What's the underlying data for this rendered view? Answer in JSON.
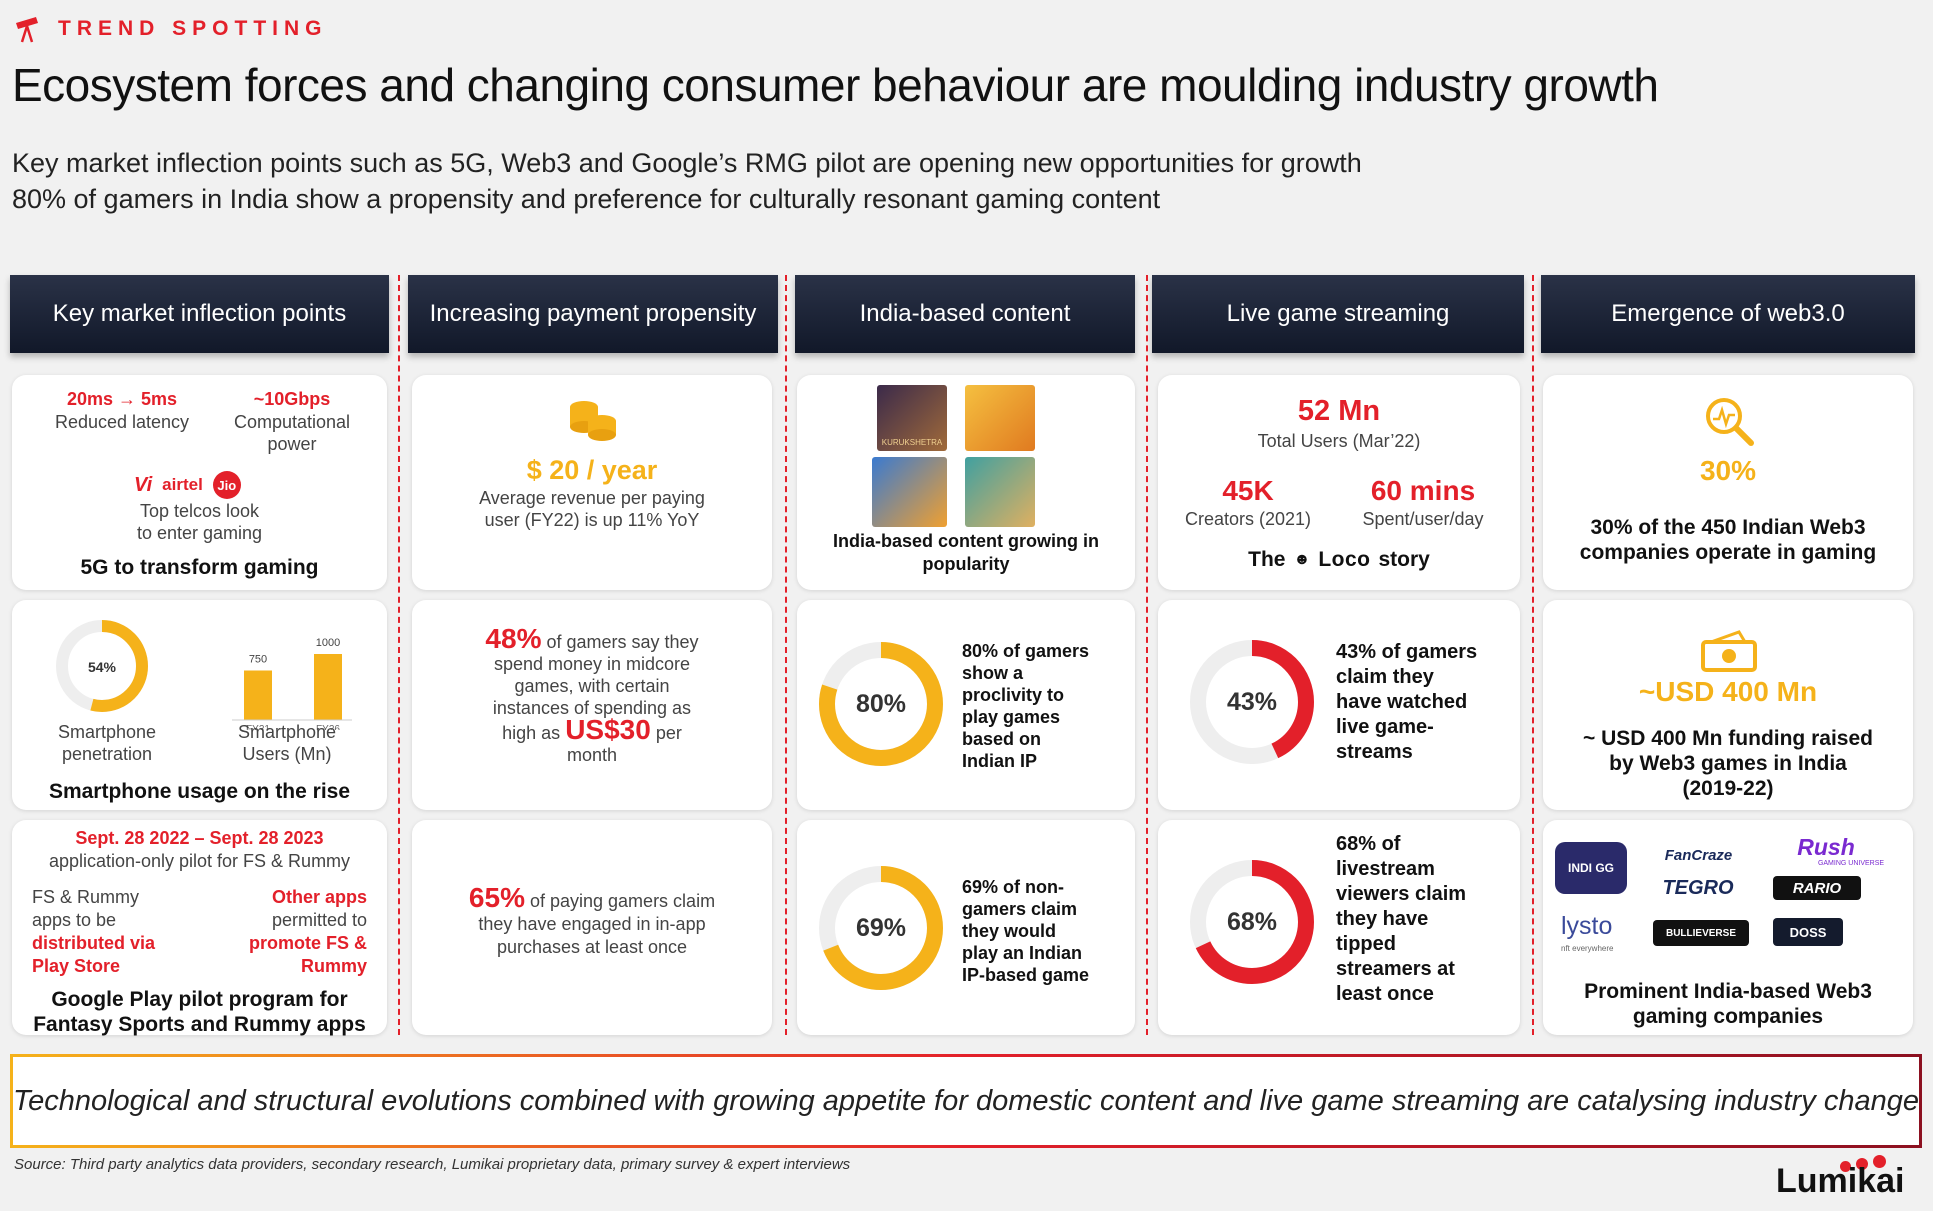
{
  "header": {
    "tag": "TREND SPOTTING",
    "title": "Ecosystem forces and changing consumer behaviour are moulding industry growth",
    "subtitle1": "Key market inflection points such as 5G, Web3 and Google’s RMG pilot are opening new opportunities for growth",
    "subtitle2": "80% of gamers in India show a propensity and preference for culturally resonant gaming content"
  },
  "columns": [
    "Key market inflection points",
    "Increasing payment propensity",
    "India-based content",
    "Live game streaming",
    "Emergence of web3.0"
  ],
  "col1": {
    "latency_value": "20ms → 5ms",
    "latency_label": "Reduced latency",
    "gbps_value": "~10Gbps",
    "gbps_label1": "Computational",
    "gbps_label2": "power",
    "telco_vi": "Vi",
    "telco_airtel": "airtel",
    "telco_jio": "Jio",
    "telcos_text1": "Top telcos look",
    "telcos_text2": "to enter gaming",
    "card1_title": "5G to transform gaming",
    "smartphone_pct_label": "54%",
    "smartphone_pen_label1": "Smartphone",
    "smartphone_pen_label2": "penetration",
    "users_label1": "Smartphone",
    "users_label2": "Users (Mn)",
    "card2_title": "Smartphone usage on the rise",
    "pilot_dates": "Sept. 28 2022 – Sept. 28 2023",
    "pilot_sub": "application-only pilot for FS & Rummy",
    "left_t1": "FS & Rummy",
    "left_t2": "apps to be",
    "left_t3": "distributed via",
    "left_t4": "Play Store",
    "right_t1": "Other apps",
    "right_t2": "permitted to",
    "right_t3": "promote FS &",
    "right_t4": "Rummy",
    "card3_title1": "Google Play pilot program for",
    "card3_title2": "Fantasy Sports and Rummy apps"
  },
  "col2": {
    "arpu": "$ 20 / year",
    "arpu_t1": "Average revenue per paying",
    "arpu_t2": "user (FY22) is up 11% YoY",
    "pct48": "48%",
    "t48_a": "of gamers say they",
    "t48_b": "spend money in midcore",
    "t48_c": "games, with certain",
    "t48_d": "instances of spending as",
    "t48_e": "high as",
    "t48_amt": "US$30",
    "t48_f": "per",
    "t48_g": "month",
    "pct65": "65%",
    "t65_a": "of paying gamers claim",
    "t65_b": "they have engaged in in-app",
    "t65_c": "purchases at least once"
  },
  "col3": {
    "game1_caption": "KURUKSHETRA",
    "popularity1": "India-based content growing in",
    "popularity2": "popularity",
    "donut80_label": "80%",
    "t80_1": "80% of gamers",
    "t80_2": "show a",
    "t80_3": "proclivity to",
    "t80_4": "play games",
    "t80_5": "based on",
    "t80_6": "Indian IP",
    "donut69_label": "69%",
    "t69_1": "69% of non-",
    "t69_2": "gamers claim",
    "t69_3": "they would",
    "t69_4": "play an Indian",
    "t69_5": "IP-based game"
  },
  "col4": {
    "users": "52 Mn",
    "users_label": "Total Users (Mar’22)",
    "creators": "45K",
    "creators_label": "Creators (2021)",
    "mins": "60 mins",
    "mins_label": "Spent/user/day",
    "story_the": "The",
    "story_brand": "Loco",
    "story_end": "story",
    "donut43_label": "43%",
    "t43_1": "43% of gamers",
    "t43_2": "claim they",
    "t43_3": "have watched",
    "t43_4": "live game-",
    "t43_5": "streams",
    "donut68_label": "68%",
    "t68_1": "68% of",
    "t68_2": "livestream",
    "t68_3": "viewers claim",
    "t68_4": "they have",
    "t68_5": "tipped",
    "t68_6": "streamers at",
    "t68_7": "least once"
  },
  "col5": {
    "pct30": "30%",
    "t30_1": "30% of the 450 Indian Web3",
    "t30_2": "companies operate in gaming",
    "usd": "~USD 400 Mn",
    "tusd_1": "~ USD 400 Mn funding raised",
    "tusd_2": "by Web3 games in India",
    "tusd_3": "(2019-22)",
    "logos": {
      "indigg": "INDI GG",
      "fancraze": "FanCraze",
      "rush": "Rush",
      "rush_sub": "GAMING UNIVERSE",
      "tegro": "TEGRO",
      "rario": "RARIO",
      "lysto": "lysto",
      "lysto_sub": "nft everywhere",
      "bulleverse": "BULLIEVERSE",
      "doss": "DOSS"
    },
    "card3_title1": "Prominent India-based Web3",
    "card3_title2": "gaming companies"
  },
  "banner": "Technological and structural evolutions combined with growing appetite for domestic content and live game streaming are catalysing industry change",
  "source": "Source: Third party analytics data providers, secondary research, Lumikai proprietary data, primary survey & expert interviews",
  "brand": "Lumikai",
  "colors": {
    "red": "#e3202a",
    "orange": "#f5b21a",
    "navy": "#141b2d",
    "track": "#eeeeee"
  },
  "chart_data": [
    {
      "type": "pie",
      "variant": "donut",
      "values": [
        54,
        46
      ],
      "label": "54%"
    },
    {
      "type": "bar",
      "categories": [
        "FY21",
        "FY26"
      ],
      "values": [
        750,
        1000
      ],
      "data_labels": [
        "750",
        "1000"
      ]
    },
    {
      "type": "pie",
      "variant": "donut",
      "values": [
        80,
        20
      ],
      "label": "80%"
    },
    {
      "type": "pie",
      "variant": "donut",
      "values": [
        69,
        31
      ],
      "label": "69%"
    },
    {
      "type": "pie",
      "variant": "donut",
      "values": [
        43,
        57
      ],
      "label": "43%"
    },
    {
      "type": "pie",
      "variant": "donut",
      "values": [
        68,
        32
      ],
      "label": "68%"
    }
  ]
}
